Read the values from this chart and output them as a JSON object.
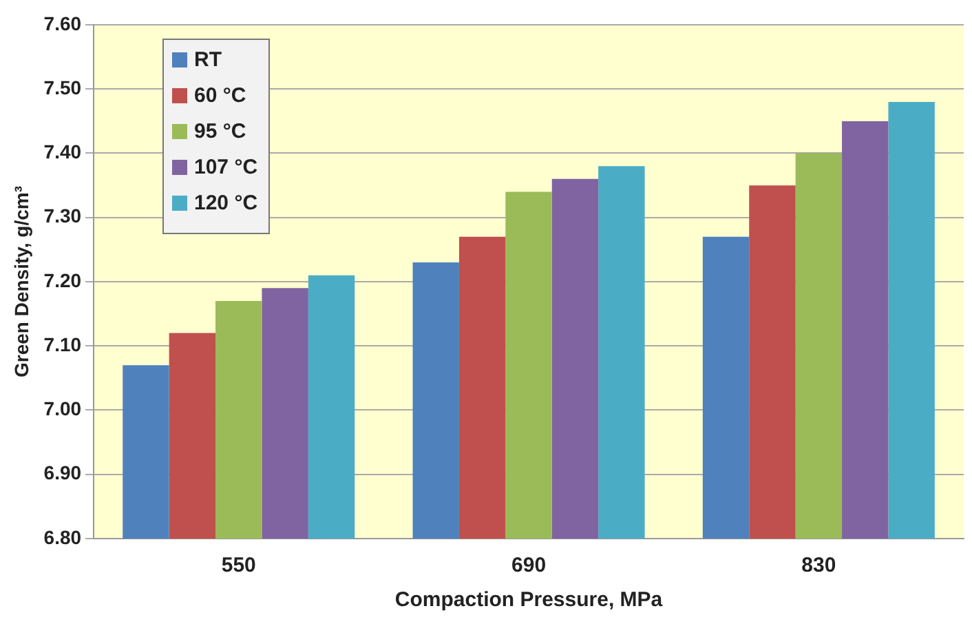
{
  "chart_data": {
    "type": "bar",
    "xlabel": "Compaction Pressure, MPa",
    "ylabel": "Green Density, g/cm³",
    "categories": [
      "550",
      "690",
      "830"
    ],
    "series": [
      {
        "name": "RT",
        "color": "#4f81bd",
        "values": [
          7.07,
          7.23,
          7.27
        ]
      },
      {
        "name": "60 °C",
        "color": "#c0504d",
        "values": [
          7.12,
          7.27,
          7.35
        ]
      },
      {
        "name": "95 °C",
        "color": "#9bbb59",
        "values": [
          7.17,
          7.34,
          7.4
        ]
      },
      {
        "name": "107 °C",
        "color": "#8064a2",
        "values": [
          7.19,
          7.36,
          7.45
        ]
      },
      {
        "name": "120 °C",
        "color": "#4bacc6",
        "values": [
          7.21,
          7.38,
          7.48
        ]
      }
    ],
    "ylim": [
      6.8,
      7.6
    ],
    "yticks": [
      {
        "value": 6.8,
        "label": "6.80"
      },
      {
        "value": 6.9,
        "label": "6.90"
      },
      {
        "value": 7.0,
        "label": "7.00"
      },
      {
        "value": 7.1,
        "label": "7.10"
      },
      {
        "value": 7.2,
        "label": "7.20"
      },
      {
        "value": 7.3,
        "label": "7.30"
      },
      {
        "value": 7.4,
        "label": "7.40"
      },
      {
        "value": 7.5,
        "label": "7.50"
      },
      {
        "value": 7.6,
        "label": "7.60"
      }
    ],
    "grid": "y",
    "legend": "top left"
  }
}
